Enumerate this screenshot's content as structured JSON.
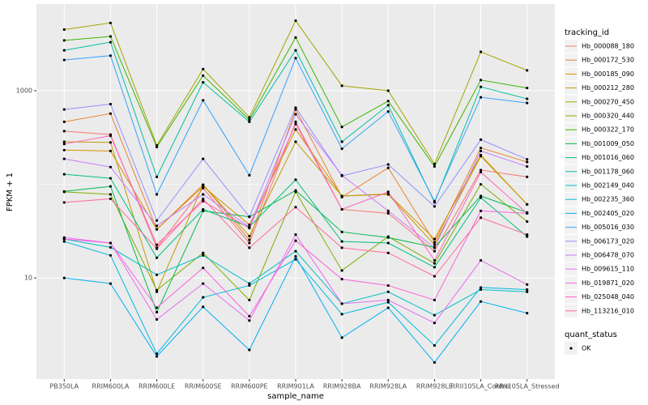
{
  "chart_data": {
    "type": "line",
    "x_label": "sample_name",
    "y_label": "FPKM + 1",
    "log_y": true,
    "grid": true,
    "categories": [
      "PB350LA",
      "RRIM600LA",
      "RRIM600LE",
      "RRIM600SE",
      "RRIM600PE",
      "RRIM901LA",
      "RRIM928BA",
      "RRIM928LA",
      "RRIM928LE",
      "RRII105LA_Control",
      "RRII105LA_Stressed"
    ],
    "ylim": [
      0.83,
      8430
    ],
    "yticks": [
      10,
      1000
    ],
    "y_minor_ticks": [
      100
    ],
    "legend_title": "tracking_id",
    "legend_position": "right",
    "point_legend_title": "quant_status",
    "point_legend_label": "OK",
    "point_color": "#000000",
    "series": [
      {
        "name": "Hb_000088_180",
        "color": "#F8766D",
        "values": [
          370,
          340,
          21,
          91,
          23.6,
          465,
          54,
          49,
          19.3,
          142,
          120
        ]
      },
      {
        "name": "Hb_000172_530",
        "color": "#EA8331",
        "values": [
          465,
          570,
          33,
          99,
          25.5,
          630,
          73,
          150,
          24,
          245,
          173
        ]
      },
      {
        "name": "Hb_000185_090",
        "color": "#D89000",
        "values": [
          232,
          227,
          33,
          95,
          37,
          385,
          75,
          79,
          26,
          205,
          61
        ]
      },
      {
        "name": "Hb_000212_280",
        "color": "#C09B00",
        "values": [
          285,
          280,
          7.1,
          99,
          28,
          285,
          75,
          78,
          22.6,
          200,
          61
        ]
      },
      {
        "name": "Hb_000270_450",
        "color": "#A3A500",
        "values": [
          4500,
          5300,
          260,
          1700,
          520,
          5600,
          1130,
          1000,
          165,
          2600,
          1650
        ]
      },
      {
        "name": "Hb_000320_440",
        "color": "#7CAE00",
        "values": [
          83,
          78,
          7.4,
          18.5,
          5.8,
          83,
          12,
          27.6,
          14.3,
          100,
          40
        ]
      },
      {
        "name": "Hb_000322_170",
        "color": "#39B600",
        "values": [
          3450,
          3800,
          250,
          1450,
          490,
          3700,
          410,
          775,
          155,
          1300,
          1070
        ]
      },
      {
        "name": "Hb_001009_050",
        "color": "#00BB4E",
        "values": [
          84,
          95,
          4.3,
          52,
          45,
          86,
          31,
          27,
          21.2,
          75,
          50
        ]
      },
      {
        "name": "Hb_001016_060",
        "color": "#00BF7D",
        "values": [
          128,
          116,
          16.4,
          54,
          35,
          112,
          24.5,
          23.6,
          13,
          72,
          27.6
        ]
      },
      {
        "name": "Hb_001178_060",
        "color": "#00C1A3",
        "values": [
          2700,
          3300,
          120,
          1230,
          465,
          2700,
          285,
          700,
          64,
          1100,
          820
        ]
      },
      {
        "name": "Hb_002149_040",
        "color": "#00BFC4",
        "values": [
          26,
          21.2,
          10.8,
          17.4,
          8.7,
          19.3,
          5.3,
          7.1,
          4,
          7.5,
          7.1
        ]
      },
      {
        "name": "Hb_002235_360",
        "color": "#00BAE0",
        "values": [
          24.5,
          17.4,
          1.55,
          6.2,
          8.3,
          15.8,
          4.1,
          5.5,
          1.9,
          7.9,
          7.5
        ]
      },
      {
        "name": "Hb_002405_020",
        "color": "#00B0F6",
        "values": [
          10,
          8.7,
          1.45,
          4.9,
          1.7,
          17,
          2.3,
          4.8,
          1.25,
          5.6,
          4.2
        ]
      },
      {
        "name": "Hb_005016_030",
        "color": "#35A2FF",
        "values": [
          2130,
          2370,
          78,
          790,
          125,
          2230,
          240,
          600,
          66,
          850,
          740
        ]
      },
      {
        "name": "Hb_006173_020",
        "color": "#9590FF",
        "values": [
          630,
          720,
          41,
          187,
          45,
          660,
          123,
          163,
          58,
          300,
          185
        ]
      },
      {
        "name": "Hb_006478_070",
        "color": "#C77CFF",
        "values": [
          187,
          153,
          36,
          78,
          35,
          560,
          125,
          52,
          21,
          227,
          155
        ]
      },
      {
        "name": "Hb_009615_110",
        "color": "#E76BF3",
        "values": [
          27,
          23.6,
          3.6,
          8.7,
          3.5,
          29,
          5.3,
          5.8,
          3.3,
          15.4,
          8.5
        ]
      },
      {
        "name": "Hb_019871_020",
        "color": "#FA62DB",
        "values": [
          26,
          23.6,
          4.8,
          12.8,
          3.9,
          25,
          9.7,
          8.3,
          5.8,
          52,
          49
        ]
      },
      {
        "name": "Hb_025048_040",
        "color": "#FF62BC",
        "values": [
          270,
          330,
          22.6,
          66,
          34,
          440,
          54,
          83,
          15.4,
          135,
          49
        ]
      },
      {
        "name": "Hb_113216_010",
        "color": "#FF6A98",
        "values": [
          64,
          70,
          20.5,
          70,
          21,
          57,
          21,
          18.5,
          10.4,
          44,
          29
        ]
      }
    ]
  }
}
